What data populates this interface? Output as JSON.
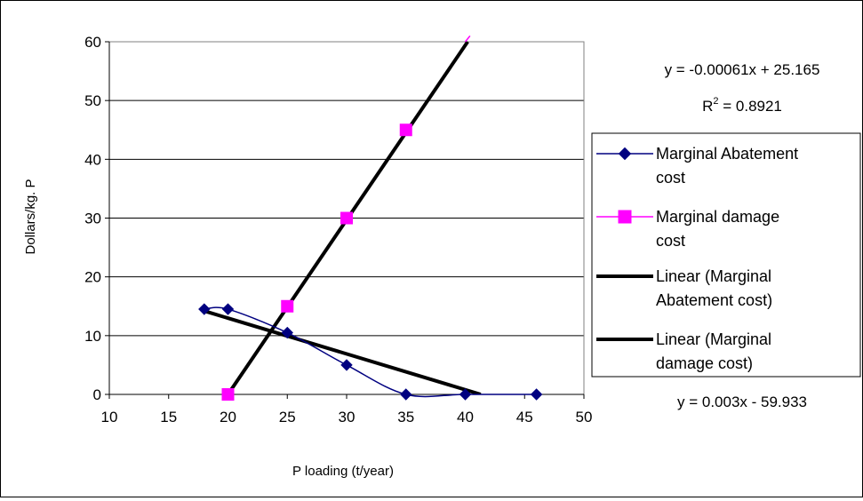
{
  "chart_data": {
    "type": "line",
    "title": "",
    "xlabel": "P loading (t/year)",
    "ylabel": "Dollars/kg. P",
    "xlim": [
      10,
      50
    ],
    "ylim": [
      0,
      60
    ],
    "xticks": [
      "10",
      "15",
      "20",
      "25",
      "30",
      "35",
      "40",
      "45",
      "50"
    ],
    "yticks": [
      "0",
      "10",
      "20",
      "30",
      "40",
      "50",
      "60"
    ],
    "grid": true,
    "legend_position": "right",
    "series": [
      {
        "name": "Marginal Abatement cost",
        "color": "#000080",
        "marker": "diamond",
        "smoothed": true,
        "x": [
          18,
          20,
          25,
          30,
          35,
          40,
          46
        ],
        "y": [
          14.5,
          14.5,
          10.5,
          5,
          0,
          0,
          0
        ]
      },
      {
        "name": "Marginal damage cost",
        "color": "#ff00ff",
        "marker": "square",
        "smoothed": false,
        "x": [
          20,
          25,
          30,
          35
        ],
        "y": [
          0,
          15,
          30,
          45
        ]
      },
      {
        "name": "Linear (Marginal Abatement cost)",
        "color": "#000000",
        "trendline": true,
        "x": [
          18,
          41.3
        ],
        "y": [
          14.2,
          0
        ]
      },
      {
        "name": "Linear (Marginal damage cost)",
        "color": "#000000",
        "trendline": true,
        "x": [
          20,
          40.2
        ],
        "y": [
          0,
          60
        ]
      }
    ],
    "annotations": {
      "eq1_line1": "y = -0.00061x + 25.165",
      "eq1_r2_prefix": "R",
      "eq1_r2_sup": "2",
      "eq1_r2_value": " = 0.8921",
      "eq2": "y = 0.003x - 59.933"
    },
    "legend": [
      {
        "line1": "Marginal Abatement",
        "line2": "cost"
      },
      {
        "line1": "Marginal damage",
        "line2": "cost"
      },
      {
        "line1": "Linear (Marginal",
        "line2": "Abatement cost)"
      },
      {
        "line1": "Linear (Marginal",
        "line2": "damage cost)"
      }
    ]
  }
}
